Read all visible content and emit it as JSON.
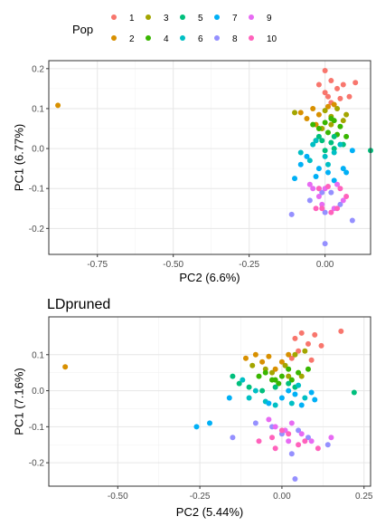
{
  "legend": {
    "title": "Pop",
    "entries": [
      {
        "label": "1",
        "color": "#F8766D"
      },
      {
        "label": "2",
        "color": "#D89000"
      },
      {
        "label": "3",
        "color": "#A3A500"
      },
      {
        "label": "4",
        "color": "#39B600"
      },
      {
        "label": "5",
        "color": "#00BF7D"
      },
      {
        "label": "6",
        "color": "#00BFC4"
      },
      {
        "label": "7",
        "color": "#00B0F6"
      },
      {
        "label": "8",
        "color": "#9590FF"
      },
      {
        "label": "9",
        "color": "#E76BF3"
      },
      {
        "label": "10",
        "color": "#FF62BC"
      }
    ]
  },
  "chart_data": [
    {
      "type": "scatter",
      "title": "",
      "xlabel": "PC2 (6.6%)",
      "ylabel": "PC1 (6.77%)",
      "xlim": [
        -0.91,
        0.15
      ],
      "ylim": [
        -0.265,
        0.22
      ],
      "xticks": [
        -0.75,
        -0.5,
        -0.25,
        0.0
      ],
      "xtick_labels": [
        "-0.75",
        "-0.50",
        "-0.25",
        "0.00"
      ],
      "yticks": [
        -0.2,
        -0.1,
        0.0,
        0.1,
        0.2
      ],
      "ytick_labels": [
        "-0.2",
        "-0.1",
        "0.0",
        "0.1",
        "0.2"
      ],
      "grid": true,
      "series": [
        {
          "name": "1",
          "points": [
            [
              0.0,
              0.195
            ],
            [
              0.02,
              0.17
            ],
            [
              0.06,
              0.16
            ],
            [
              0.0,
              0.14
            ],
            [
              0.04,
              0.15
            ],
            [
              0.01,
              0.13
            ],
            [
              -0.02,
              0.16
            ],
            [
              0.08,
              0.13
            ],
            [
              0.05,
              0.125
            ],
            [
              0.02,
              0.115
            ],
            [
              0.1,
              0.165
            ]
          ]
        },
        {
          "name": "2",
          "points": [
            [
              -0.88,
              0.108
            ],
            [
              -0.04,
              0.1
            ],
            [
              -0.02,
              0.085
            ],
            [
              -0.08,
              0.09
            ],
            [
              0.01,
              0.105
            ],
            [
              -0.06,
              0.075
            ],
            [
              -0.03,
              0.06
            ],
            [
              0.03,
              0.11
            ]
          ]
        },
        {
          "name": "3",
          "points": [
            [
              -0.1,
              0.09
            ],
            [
              0.06,
              0.07
            ],
            [
              0.02,
              0.08
            ],
            [
              0.0,
              0.095
            ],
            [
              0.04,
              0.1
            ],
            [
              -0.01,
              0.05
            ],
            [
              0.07,
              0.085
            ],
            [
              0.02,
              0.06
            ]
          ]
        },
        {
          "name": "4",
          "points": [
            [
              -0.02,
              0.05
            ],
            [
              0.0,
              0.065
            ],
            [
              0.03,
              0.07
            ],
            [
              0.05,
              0.055
            ],
            [
              -0.04,
              0.06
            ],
            [
              0.01,
              0.04
            ],
            [
              0.07,
              0.03
            ],
            [
              -0.03,
              0.02
            ],
            [
              0.04,
              0.035
            ],
            [
              0.02,
              0.075
            ]
          ]
        },
        {
          "name": "5",
          "points": [
            [
              -0.01,
              0.02
            ],
            [
              0.03,
              0.0
            ],
            [
              0.06,
              0.01
            ],
            [
              0.0,
              -0.005
            ],
            [
              0.15,
              -0.005
            ],
            [
              0.03,
              0.03
            ],
            [
              -0.02,
              0.03
            ],
            [
              0.02,
              0.015
            ]
          ]
        },
        {
          "name": "6",
          "points": [
            [
              -0.04,
              0.01
            ],
            [
              -0.03,
              0.02
            ],
            [
              0.0,
              -0.02
            ],
            [
              0.03,
              -0.01
            ],
            [
              0.05,
              0.01
            ],
            [
              -0.08,
              -0.01
            ],
            [
              -0.05,
              -0.03
            ],
            [
              0.01,
              -0.04
            ]
          ]
        },
        {
          "name": "7",
          "points": [
            [
              -0.06,
              -0.02
            ],
            [
              -0.02,
              -0.05
            ],
            [
              0.01,
              -0.06
            ],
            [
              0.06,
              -0.05
            ],
            [
              -0.03,
              -0.07
            ],
            [
              0.03,
              -0.08
            ],
            [
              0.07,
              -0.06
            ],
            [
              -0.08,
              -0.04
            ],
            [
              -0.1,
              -0.075
            ],
            [
              0.09,
              -0.005
            ]
          ]
        },
        {
          "name": "8",
          "points": [
            [
              -0.02,
              -0.1
            ],
            [
              -0.01,
              -0.11
            ],
            [
              0.02,
              -0.11
            ],
            [
              -0.05,
              -0.13
            ],
            [
              0.0,
              -0.16
            ],
            [
              0.05,
              -0.14
            ],
            [
              0.09,
              -0.18
            ],
            [
              -0.11,
              -0.165
            ],
            [
              0.0,
              -0.238
            ]
          ]
        },
        {
          "name": "9",
          "points": [
            [
              -0.05,
              -0.09
            ],
            [
              -0.04,
              -0.1
            ],
            [
              -0.02,
              -0.12
            ],
            [
              0.0,
              -0.1
            ],
            [
              0.04,
              -0.09
            ],
            [
              -0.01,
              -0.14
            ],
            [
              0.06,
              -0.13
            ],
            [
              0.03,
              -0.15
            ]
          ]
        },
        {
          "name": "10",
          "points": [
            [
              -0.02,
              -0.1
            ],
            [
              0.01,
              -0.095
            ],
            [
              0.05,
              -0.1
            ],
            [
              -0.03,
              -0.15
            ],
            [
              0.02,
              -0.16
            ],
            [
              0.07,
              -0.12
            ],
            [
              -0.01,
              -0.15
            ],
            [
              0.04,
              -0.15
            ]
          ]
        }
      ]
    },
    {
      "type": "scatter",
      "title": "LDpruned",
      "xlabel": "PC2 (5.44%)",
      "ylabel": "PC1 (7.16%)",
      "xlim": [
        -0.71,
        0.27
      ],
      "ylim": [
        -0.265,
        0.205
      ],
      "xticks": [
        -0.5,
        -0.25,
        0.0,
        0.25
      ],
      "xtick_labels": [
        "-0.50",
        "-0.25",
        "0.00",
        "0.25"
      ],
      "yticks": [
        -0.2,
        -0.1,
        0.0,
        0.1
      ],
      "ytick_labels": [
        "-0.2",
        "-0.1",
        "0.0",
        "0.1"
      ],
      "grid": true,
      "series": [
        {
          "name": "1",
          "points": [
            [
              0.18,
              0.165
            ],
            [
              0.06,
              0.16
            ],
            [
              0.1,
              0.155
            ],
            [
              0.04,
              0.145
            ],
            [
              0.08,
              0.13
            ],
            [
              0.12,
              0.125
            ],
            [
              0.05,
              0.11
            ],
            [
              0.03,
              0.09
            ],
            [
              0.09,
              0.085
            ]
          ]
        },
        {
          "name": "2",
          "points": [
            [
              -0.66,
              0.066
            ],
            [
              -0.04,
              0.095
            ],
            [
              -0.08,
              0.1
            ],
            [
              -0.11,
              0.09
            ],
            [
              -0.06,
              0.08
            ],
            [
              -0.02,
              0.06
            ],
            [
              0.0,
              0.08
            ],
            [
              0.02,
              0.1
            ]
          ]
        },
        {
          "name": "3",
          "points": [
            [
              -0.09,
              0.07
            ],
            [
              -0.03,
              0.05
            ],
            [
              0.01,
              0.07
            ],
            [
              0.04,
              0.1
            ],
            [
              -0.05,
              0.06
            ],
            [
              0.06,
              0.04
            ],
            [
              0.07,
              0.11
            ],
            [
              0.02,
              0.04
            ]
          ]
        },
        {
          "name": "4",
          "points": [
            [
              -0.07,
              0.04
            ],
            [
              -0.05,
              0.05
            ],
            [
              -0.02,
              0.03
            ],
            [
              0.0,
              0.04
            ],
            [
              0.02,
              0.06
            ],
            [
              0.05,
              0.05
            ],
            [
              -0.01,
              0.02
            ],
            [
              0.03,
              0.03
            ],
            [
              -0.03,
              0.03
            ],
            [
              0.08,
              0.06
            ]
          ]
        },
        {
          "name": "5",
          "points": [
            [
              -0.15,
              0.04
            ],
            [
              -0.13,
              0.02
            ],
            [
              -0.1,
              0.01
            ],
            [
              -0.06,
              0.0
            ],
            [
              -0.02,
              0.01
            ],
            [
              0.02,
              0.02
            ],
            [
              0.04,
              0.01
            ],
            [
              0.22,
              -0.005
            ]
          ]
        },
        {
          "name": "6",
          "points": [
            [
              -0.12,
              0.03
            ],
            [
              -0.08,
              0.0
            ],
            [
              -0.05,
              -0.03
            ],
            [
              -0.02,
              -0.04
            ],
            [
              0.03,
              -0.035
            ],
            [
              0.07,
              -0.02
            ],
            [
              -0.1,
              -0.02
            ],
            [
              0.05,
              0.015
            ]
          ]
        },
        {
          "name": "7",
          "points": [
            [
              -0.26,
              -0.1
            ],
            [
              -0.22,
              -0.09
            ],
            [
              -0.16,
              -0.02
            ],
            [
              -0.04,
              -0.035
            ],
            [
              0.0,
              -0.02
            ],
            [
              0.06,
              -0.04
            ],
            [
              0.09,
              -0.005
            ],
            [
              0.04,
              -0.01
            ],
            [
              0.1,
              -0.025
            ],
            [
              0.02,
              0.0
            ]
          ]
        },
        {
          "name": "8",
          "points": [
            [
              -0.15,
              -0.13
            ],
            [
              -0.08,
              -0.09
            ],
            [
              -0.03,
              -0.1
            ],
            [
              0.0,
              -0.12
            ],
            [
              0.05,
              -0.11
            ],
            [
              0.08,
              -0.13
            ],
            [
              0.14,
              -0.15
            ],
            [
              0.03,
              -0.175
            ],
            [
              0.04,
              -0.245
            ]
          ]
        },
        {
          "name": "9",
          "points": [
            [
              -0.04,
              -0.08
            ],
            [
              -0.02,
              -0.1
            ],
            [
              0.01,
              -0.11
            ],
            [
              0.03,
              -0.09
            ],
            [
              0.06,
              -0.12
            ],
            [
              0.09,
              -0.14
            ],
            [
              0.02,
              -0.14
            ],
            [
              0.15,
              -0.13
            ]
          ]
        },
        {
          "name": "10",
          "points": [
            [
              -0.07,
              -0.14
            ],
            [
              -0.03,
              -0.13
            ],
            [
              0.0,
              -0.11
            ],
            [
              0.02,
              -0.12
            ],
            [
              0.05,
              -0.15
            ],
            [
              0.07,
              -0.14
            ],
            [
              -0.02,
              -0.16
            ],
            [
              0.11,
              -0.16
            ]
          ]
        }
      ]
    }
  ]
}
